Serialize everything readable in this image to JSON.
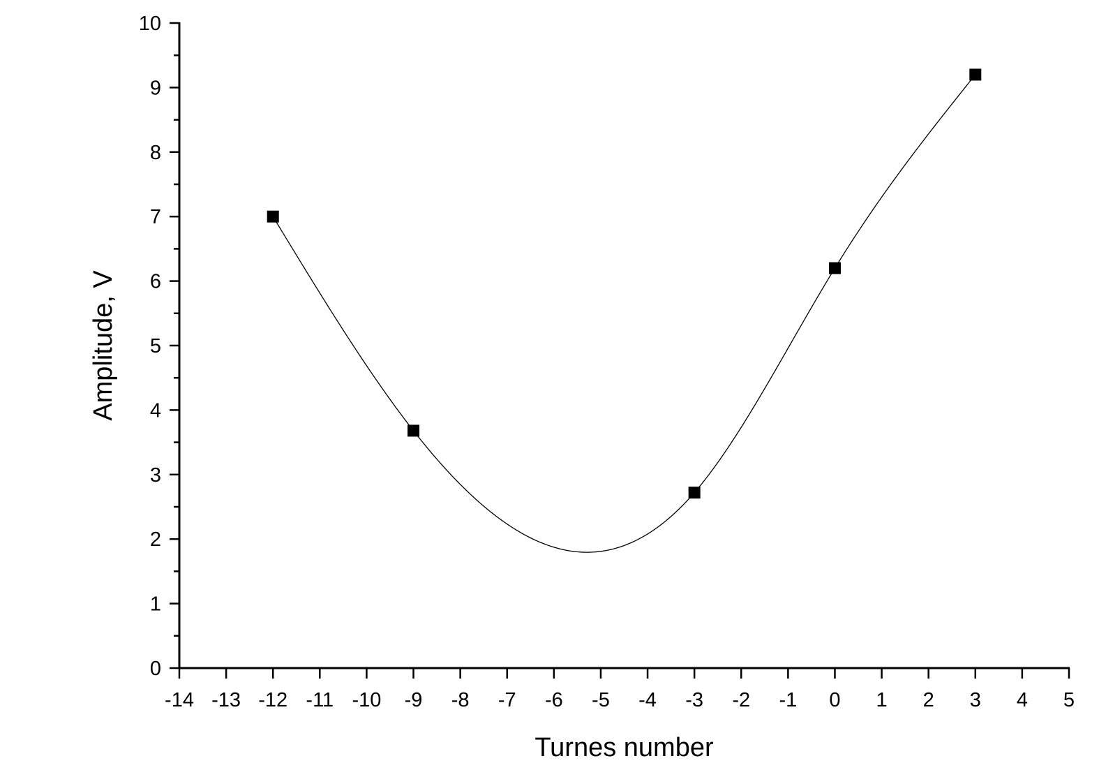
{
  "chart_data": {
    "type": "line",
    "title": "",
    "xlabel": "Turnes number",
    "ylabel": "Amplitude, V",
    "xlim": [
      -14,
      5
    ],
    "ylim": [
      0,
      10
    ],
    "x_ticks": [
      "-14",
      "-13",
      "-12",
      "-11",
      "-10",
      "-9",
      "-8",
      "-7",
      "-6",
      "-5",
      "-4",
      "-3",
      "-2",
      "-1",
      "0",
      "1",
      "2",
      "3",
      "4",
      "5"
    ],
    "y_ticks": [
      "0",
      "1",
      "2",
      "3",
      "4",
      "5",
      "6",
      "7",
      "8",
      "9",
      "10"
    ],
    "grid": false,
    "legend": "none",
    "marker": "square",
    "curve": "smooth spline through points",
    "colors": {
      "line": "#000000",
      "marker": "#000000",
      "axis": "#000000"
    },
    "series": [
      {
        "x": [
          -12,
          -9,
          -3,
          0,
          3
        ],
        "y": [
          7.0,
          3.68,
          2.72,
          6.2,
          9.2
        ]
      }
    ]
  }
}
